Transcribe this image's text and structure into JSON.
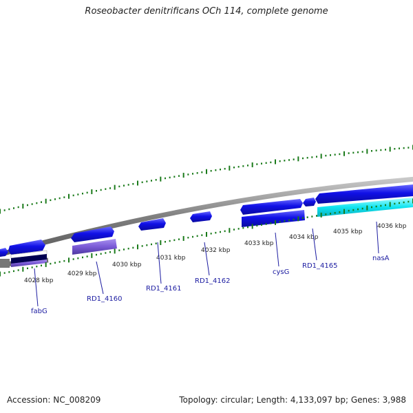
{
  "title": "Roseobacter denitrificans OCh 114, complete genome",
  "accession_text": "Accession: NC_008209",
  "summary_text": "Topology: circular; Length: 4,133,097 bp; Genes: 3,988",
  "colors": {
    "backbone": "#8a8a8a",
    "gene_forward": "#1010e0",
    "gene_highlight_cyan": "#14e6f0",
    "gene_purple": "#7a5ad6",
    "tick": "#1a7a1a",
    "label": "#1a1aa0"
  },
  "scale_labels": [
    "4028 kbp",
    "4029 kbp",
    "4030 kbp",
    "4031 kbp",
    "4032 kbp",
    "4033 kbp",
    "4034 kbp",
    "4035 kbp",
    "4036 kbp"
  ],
  "gene_labels": [
    "fabG",
    "RD1_4160",
    "RD1_4161",
    "RD1_4162",
    "cysG",
    "RD1_4165",
    "nasA"
  ]
}
